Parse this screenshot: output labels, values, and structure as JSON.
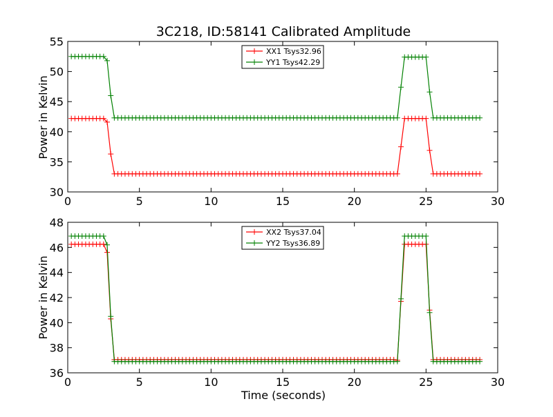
{
  "chart_data": [
    {
      "type": "line",
      "title": "3C218, ID:58141 Calibrated Amplitude",
      "xlabel": "",
      "ylabel": "Power in Kelvin",
      "xlim": [
        0,
        30
      ],
      "ylim": [
        30,
        55
      ],
      "x_ticks": [
        0,
        5,
        10,
        15,
        20,
        25,
        30
      ],
      "y_ticks": [
        30,
        35,
        40,
        45,
        50,
        55
      ],
      "grid": false,
      "legend_position": "top-center",
      "series": [
        {
          "name": "XX1 Tsys32.96",
          "color": "#ff0000",
          "marker": "plus",
          "segments": [
            {
              "from": 0.25,
              "to": 2.5,
              "value": 42.2
            },
            {
              "from": 3.25,
              "to": 22.75,
              "value": 33.0
            },
            {
              "from": 23.5,
              "to": 25.0,
              "value": 42.2
            },
            {
              "from": 25.5,
              "to": 28.75,
              "value": 33.0
            }
          ],
          "extra_points": [
            [
              2.75,
              41.6
            ],
            [
              3.0,
              36.3
            ],
            [
              23.0,
              33.0
            ],
            [
              23.25,
              37.5
            ],
            [
              25.25,
              36.9
            ]
          ]
        },
        {
          "name": "YY1 Tsys42.29",
          "color": "#008000",
          "marker": "plus",
          "segments": [
            {
              "from": 0.25,
              "to": 2.5,
              "value": 52.5
            },
            {
              "from": 3.25,
              "to": 22.75,
              "value": 42.3
            },
            {
              "from": 23.5,
              "to": 25.0,
              "value": 52.4
            },
            {
              "from": 25.5,
              "to": 28.75,
              "value": 42.3
            }
          ],
          "extra_points": [
            [
              2.75,
              51.8
            ],
            [
              3.0,
              46.0
            ],
            [
              23.0,
              42.3
            ],
            [
              23.25,
              47.4
            ],
            [
              25.25,
              46.6
            ]
          ]
        }
      ]
    },
    {
      "type": "line",
      "title": "",
      "xlabel": "Time (seconds)",
      "ylabel": "Power in Kelvin",
      "xlim": [
        0,
        30
      ],
      "ylim": [
        36,
        48
      ],
      "x_ticks": [
        0,
        5,
        10,
        15,
        20,
        25,
        30
      ],
      "y_ticks": [
        36,
        38,
        40,
        42,
        44,
        46,
        48
      ],
      "grid": false,
      "legend_position": "top-center",
      "series": [
        {
          "name": "XX2 Tsys37.04",
          "color": "#ff0000",
          "marker": "plus",
          "segments": [
            {
              "from": 0.25,
              "to": 2.5,
              "value": 46.25
            },
            {
              "from": 3.25,
              "to": 22.75,
              "value": 37.05
            },
            {
              "from": 23.5,
              "to": 25.0,
              "value": 46.25
            },
            {
              "from": 25.5,
              "to": 28.75,
              "value": 37.05
            }
          ],
          "extra_points": [
            [
              2.75,
              45.6
            ],
            [
              3.0,
              40.3
            ],
            [
              23.0,
              37.0
            ],
            [
              23.25,
              41.7
            ],
            [
              25.25,
              41.0
            ]
          ]
        },
        {
          "name": "YY2 Tsys36.89",
          "color": "#008000",
          "marker": "plus",
          "segments": [
            {
              "from": 0.25,
              "to": 2.5,
              "value": 46.9
            },
            {
              "from": 3.25,
              "to": 22.75,
              "value": 36.9
            },
            {
              "from": 23.5,
              "to": 25.0,
              "value": 46.9
            },
            {
              "from": 25.5,
              "to": 28.75,
              "value": 36.9
            }
          ],
          "extra_points": [
            [
              2.75,
              46.2
            ],
            [
              3.0,
              40.5
            ],
            [
              23.0,
              36.9
            ],
            [
              23.25,
              41.9
            ],
            [
              25.25,
              40.8
            ]
          ]
        }
      ]
    }
  ]
}
